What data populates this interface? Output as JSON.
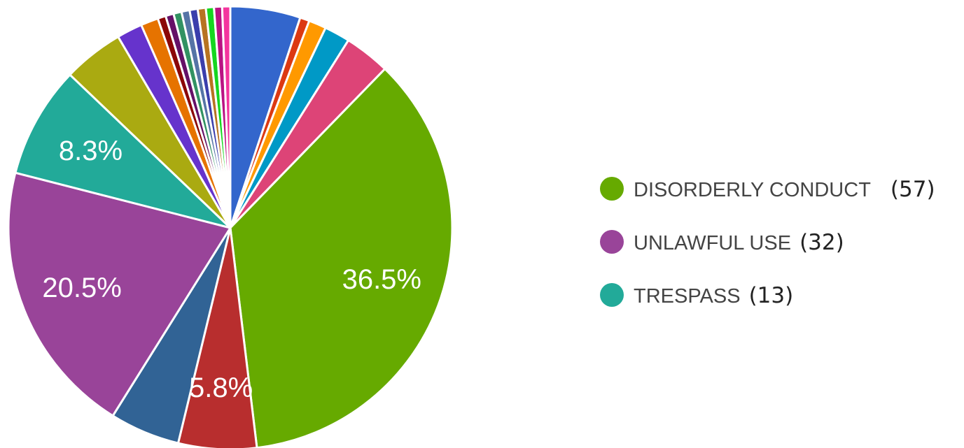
{
  "chart_data": {
    "type": "pie",
    "title": "",
    "slices": [
      {
        "label": "",
        "value": 5.2,
        "color": "#3366cc",
        "pct_label": ""
      },
      {
        "label": "",
        "value": 0.7,
        "color": "#dc3912",
        "pct_label": ""
      },
      {
        "label": "",
        "value": 1.3,
        "color": "#ff9900",
        "pct_label": ""
      },
      {
        "label": "",
        "value": 1.9,
        "color": "#0099c6",
        "pct_label": ""
      },
      {
        "label": "",
        "value": 3.4,
        "color": "#dd4477",
        "pct_label": ""
      },
      {
        "label": "DISORDERLY CONDUCT",
        "count": "(57)",
        "value": 36.5,
        "color": "#66aa00",
        "pct_label": "36.5%"
      },
      {
        "label": "",
        "value": 5.8,
        "color": "#b82e2e",
        "pct_label": "5.8%"
      },
      {
        "label": "",
        "value": 5.2,
        "color": "#316395",
        "pct_label": ""
      },
      {
        "label": "UNLAWFUL USE",
        "count": "(32)",
        "value": 20.5,
        "color": "#994499",
        "pct_label": "20.5%"
      },
      {
        "label": "TRESPASS",
        "count": "(13)",
        "value": 8.3,
        "color": "#22aa99",
        "pct_label": "8.3%"
      },
      {
        "label": "",
        "value": 4.5,
        "color": "#aaaa11",
        "pct_label": ""
      },
      {
        "label": "",
        "value": 1.9,
        "color": "#6633cc",
        "pct_label": ""
      },
      {
        "label": "",
        "value": 1.3,
        "color": "#e67300",
        "pct_label": ""
      },
      {
        "label": "",
        "value": 0.6,
        "color": "#8b0707",
        "pct_label": ""
      },
      {
        "label": "",
        "value": 0.6,
        "color": "#651067",
        "pct_label": ""
      },
      {
        "label": "",
        "value": 0.6,
        "color": "#329262",
        "pct_label": ""
      },
      {
        "label": "",
        "value": 0.6,
        "color": "#5574a6",
        "pct_label": ""
      },
      {
        "label": "",
        "value": 0.6,
        "color": "#3b3eac",
        "pct_label": ""
      },
      {
        "label": "",
        "value": 0.6,
        "color": "#b77322",
        "pct_label": ""
      },
      {
        "label": "",
        "value": 0.6,
        "color": "#16d620",
        "pct_label": ""
      },
      {
        "label": "",
        "value": 0.6,
        "color": "#b91383",
        "pct_label": ""
      },
      {
        "label": "",
        "value": 0.6,
        "color": "#f4359e",
        "pct_label": ""
      }
    ],
    "legend": [
      {
        "label": "DISORDERLY CONDUCT",
        "count": "(57)",
        "color": "#66aa00"
      },
      {
        "label": "UNLAWFUL USE",
        "count": "(32)",
        "color": "#994499"
      },
      {
        "label": "TRESPASS",
        "count": "(13)",
        "color": "#22aa99"
      }
    ],
    "legend_position": "right"
  }
}
